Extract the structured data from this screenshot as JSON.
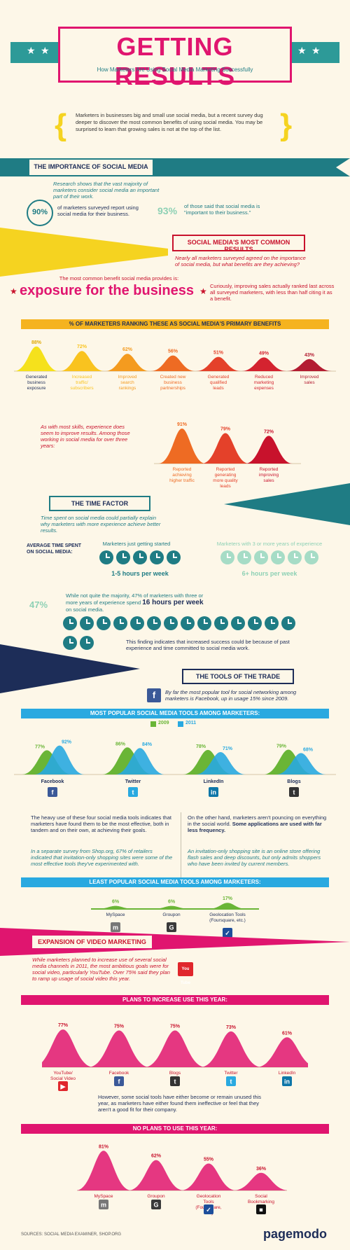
{
  "title": "GETTING RESULTS",
  "subtitle": "How Marketers Are Using Social Media Marketing Successfully",
  "intro": "Marketers in businesses big and small use social media, but a recent survey dug deeper to discover the most common benefits of using social media. You may be surprised to learn that growing sales is not at the top of the list.",
  "importance": {
    "heading": "THE IMPORTANCE OF SOCIAL MEDIA",
    "text": "Research shows that the vast majority of marketers consider social media an important part of their work.",
    "stat1_value": "90%",
    "stat1_text": "of marketers surveyed report using social media for their business.",
    "stat2_value": "93%",
    "stat2_text": "of those said that social media is \"important to their business.\""
  },
  "common": {
    "heading": "SOCIAL MEDIA'S MOST COMMON RESULTS",
    "text": "Nearly all marketers surveyed agreed on the importance of social media, but what benefits are they achieving?",
    "lead": "The most common benefit social media provides is:",
    "big": "exposure for the business",
    "side": "Curiously, improving sales actually ranked last across all surveyed marketers, with less than half citing it as a benefit."
  },
  "benefits_band": "% OF MARKETERS RANKING THESE AS SOCIAL MEDIA'S PRIMARY BENEFITS",
  "experience": {
    "text": "As with most skills, experience does seem to improve results. Among those working in social media for over three years:"
  },
  "time": {
    "heading": "THE TIME FACTOR",
    "text": "Time spent on social media could partially explain why marketers with more experience achieve better results.",
    "avg_label": "AVERAGE TIME SPENT ON SOCIAL MEDIA:",
    "new_label": "Marketers just getting started",
    "new_value": "1-5 hours per week",
    "exp_label": "Marketers with 3 or more years of experience",
    "exp_value": "6+ hours per week",
    "pct": "47%",
    "pct_text": "While not quite the majority, 47% of marketers with three or more years of experience spend",
    "pct_hours": "16 hours per week",
    "pct_tail": "on social media.",
    "finding": "This finding indicates that increased success could be because of past experience and time committed to social media work."
  },
  "tools": {
    "heading": "THE TOOLS OF THE TRADE",
    "fb_text": "By far the most popular tool for social networking among marketers is Facebook, up in usage 15% since 2009.",
    "popular_band": "MOST POPULAR SOCIAL MEDIA TOOLS AMONG MARKETERS:",
    "legend_2009": "2009",
    "legend_2011": "2011",
    "para_left": "The heavy use of these four social media tools indicates that marketers have found them to be the most effective, both in tandem and on their own, at achieving their goals.",
    "para_right_a": "On the other hand, marketers aren't pouncing on everything in the social world.",
    "para_right_b": "Some applications are used with far less frequency.",
    "ital_left": "In a separate survey from Shop.org, 67% of retailers indicated that invitation-only shopping sites were some of the most effective tools they've experimented with.",
    "ital_right": "An invitation-only shopping site is an online store offering flash sales and deep discounts, but only admits shoppers who have been invited by current members.",
    "least_band": "LEAST POPULAR SOCIAL MEDIA TOOLS AMONG MARKETERS:"
  },
  "video": {
    "heading": "EXPANSION OF VIDEO MARKETING",
    "text": "While marketers planned to increase use of several social media channels in 2011, the most ambitious goals were for social video, particularly YouTube. Over 75% said they plan to ramp up usage of social video this year.",
    "plans_band": "PLANS TO INCREASE USE THIS YEAR:",
    "however": "However, some social tools have either become or remain unused this year, as marketers have either found them ineffective or feel that they aren't a good fit for their company.",
    "noplans_band": "NO PLANS TO USE THIS YEAR:"
  },
  "footer": {
    "sources": "SOURCES: SOCIAL MEDIA EXAMINER, SHOP.ORG",
    "brand": "pagemodo"
  },
  "colors": {
    "pink": "#e0156f",
    "teal": "#1f7c84",
    "navy": "#1d2d58",
    "yellow": "#f5d320",
    "blue": "#29a9e0",
    "green": "#6ab536",
    "crimson": "#c8122c"
  },
  "chart_data": [
    {
      "type": "area",
      "title": "% OF MARKETERS RANKING THESE AS SOCIAL MEDIA'S PRIMARY BENEFITS",
      "categories": [
        "Generated business exposure",
        "Increased traffic/ subscribers",
        "Improved search rankings",
        "Created new business partnerships",
        "Generated qualified leads",
        "Reduced marketing expenses",
        "Improved sales"
      ],
      "values": [
        88,
        72,
        62,
        56,
        51,
        49,
        43
      ],
      "labels": [
        "88%",
        "72%",
        "62%",
        "56%",
        "51%",
        "49%",
        "43%"
      ],
      "colors": [
        "#f5e11c",
        "#f9c31f",
        "#f49b1f",
        "#ee6b23",
        "#e4412a",
        "#d4232f",
        "#b31c31"
      ]
    },
    {
      "type": "area",
      "categories": [
        "Reported achieving higher traffic",
        "Reported generating more quality leads",
        "Reported improving sales"
      ],
      "values": [
        91,
        79,
        72
      ],
      "labels": [
        "91%",
        "79%",
        "72%"
      ],
      "colors": [
        "#ee6b23",
        "#e4412a",
        "#c8122c"
      ]
    },
    {
      "type": "area",
      "title": "MOST POPULAR SOCIAL MEDIA TOOLS AMONG MARKETERS:",
      "categories": [
        "Facebook",
        "Twitter",
        "LinkedIn",
        "Blogs"
      ],
      "series": [
        {
          "name": "2009",
          "values": [
            77,
            86,
            78,
            79
          ]
        },
        {
          "name": "2011",
          "values": [
            92,
            84,
            71,
            68
          ]
        }
      ],
      "labels_2009": [
        "77%",
        "86%",
        "78%",
        "79%"
      ],
      "labels_2011": [
        "92%",
        "84%",
        "71%",
        "68%"
      ]
    },
    {
      "type": "area",
      "title": "LEAST POPULAR SOCIAL MEDIA TOOLS AMONG MARKETERS:",
      "categories": [
        "MySpace",
        "Groupon",
        "Geolocation Tools (Foursquare, etc.)"
      ],
      "values": [
        6,
        6,
        17
      ],
      "labels": [
        "6%",
        "6%",
        "17%"
      ]
    },
    {
      "type": "area",
      "title": "PLANS TO INCREASE USE THIS YEAR:",
      "categories": [
        "YouTube/ Social Video",
        "Facebook",
        "Blogs",
        "Twitter",
        "LinkedIn"
      ],
      "values": [
        77,
        75,
        75,
        73,
        61
      ],
      "labels": [
        "77%",
        "75%",
        "75%",
        "73%",
        "61%"
      ]
    },
    {
      "type": "area",
      "title": "NO PLANS TO USE THIS YEAR:",
      "categories": [
        "MySpace",
        "Groupon",
        "Geolocation Tools (Foursquare, etc.)",
        "Social Bookmarking"
      ],
      "values": [
        81,
        62,
        55,
        36
      ],
      "labels": [
        "81%",
        "62%",
        "55%",
        "36%"
      ]
    }
  ]
}
